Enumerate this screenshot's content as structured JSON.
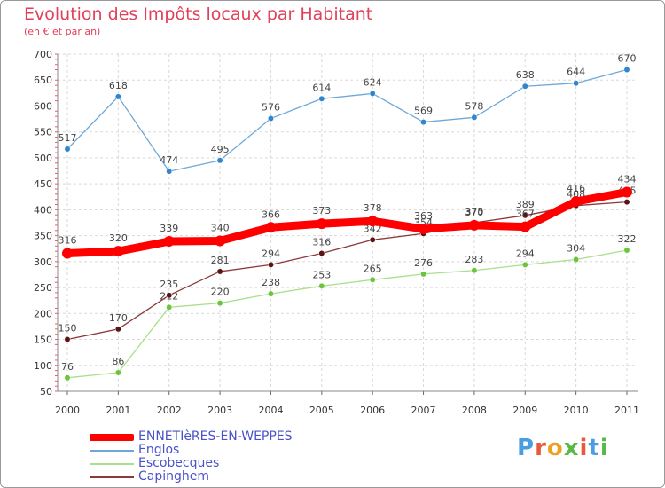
{
  "title": "Evolution des Impôts locaux par Habitant",
  "subtitle": "(en € et par an)",
  "logo_letters": [
    "P",
    "r",
    "o",
    "x",
    "i",
    "t",
    "i"
  ],
  "logo_colors": [
    "#4a9de0",
    "#e8583a",
    "#f0a020",
    "#58b848",
    "#e8583a",
    "#4a9de0",
    "#58b848"
  ],
  "chart_data": {
    "type": "line",
    "x": [
      "2000",
      "2001",
      "2002",
      "2003",
      "2004",
      "2005",
      "2006",
      "2007",
      "2008",
      "2009",
      "2010",
      "2011"
    ],
    "y_ticks": [
      "50",
      "100",
      "150",
      "200",
      "250",
      "300",
      "350",
      "400",
      "450",
      "500",
      "550",
      "600",
      "650",
      "700"
    ],
    "ylim": [
      50,
      700
    ],
    "grid": true,
    "legend_position": "bottom-left",
    "series": [
      {
        "name": "Englos",
        "color": "#6fa8d8",
        "point_color": "#2f86cf",
        "values": [
          517,
          618,
          474,
          495,
          576,
          614,
          624,
          569,
          578,
          638,
          644,
          670
        ],
        "labels": [
          "517",
          "618",
          "474",
          "495",
          "576",
          "614",
          "624",
          "569",
          "578",
          "638",
          "644",
          "670"
        ]
      },
      {
        "name": "Escobecques",
        "color": "#a8e08a",
        "point_color": "#6cc43e",
        "values": [
          76,
          86,
          212,
          220,
          238,
          253,
          265,
          276,
          283,
          294,
          304,
          322
        ],
        "labels": [
          "76",
          "86",
          "212",
          "220",
          "238",
          "253",
          "265",
          "276",
          "283",
          "294",
          "304",
          "322"
        ]
      },
      {
        "name": "Capinghem",
        "color": "#8a3a3a",
        "point_color": "#5a1414",
        "values": [
          150,
          170,
          235,
          281,
          294,
          316,
          342,
          354,
          375,
          389,
          408,
          415
        ],
        "labels": [
          "150",
          "170",
          "235",
          "281",
          "294",
          "316",
          "342",
          "354",
          "375",
          "389",
          "408",
          "415"
        ]
      },
      {
        "name": "ENNETIèRES-EN-WEPPES",
        "color": "#ff0000",
        "point_color": "#ff0000",
        "values": [
          316,
          320,
          339,
          340,
          366,
          373,
          378,
          363,
          370,
          367,
          416,
          434
        ],
        "labels": [
          "316",
          "320",
          "339",
          "340",
          "366",
          "373",
          "378",
          "363",
          "370",
          "367",
          "416",
          "434"
        ]
      }
    ]
  },
  "legend": [
    {
      "name": "ENNETIèRES-EN-WEPPES",
      "color": "#ff0000",
      "thick": true
    },
    {
      "name": "Englos",
      "color": "#6fa8d8",
      "thick": false
    },
    {
      "name": "Escobecques",
      "color": "#a8e08a",
      "thick": false
    },
    {
      "name": "Capinghem",
      "color": "#8a3a3a",
      "thick": false
    }
  ]
}
